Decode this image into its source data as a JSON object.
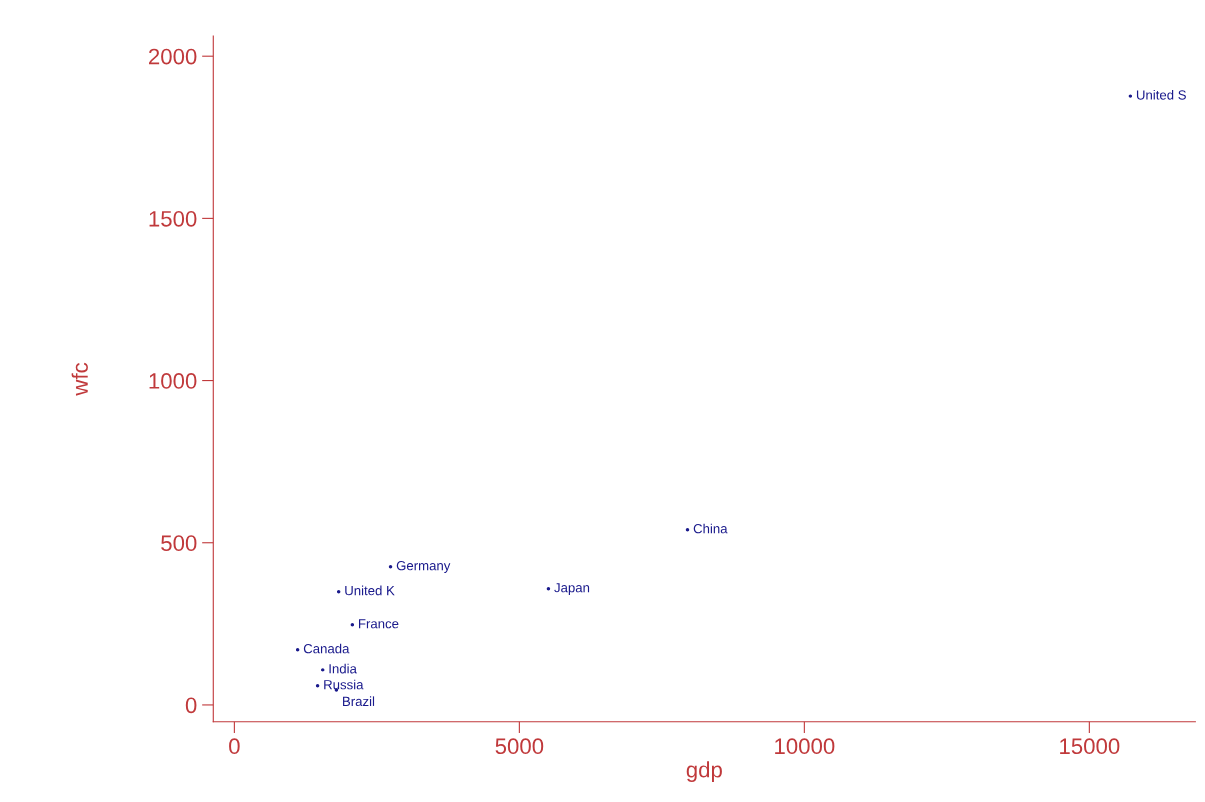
{
  "chart_data": {
    "type": "scatter",
    "xlabel": "gdp",
    "ylabel": "wfc",
    "x": [
      15720,
      7950,
      5510,
      2740,
      1830,
      2070,
      1110,
      1460,
      1790,
      1550
    ],
    "values": [
      1877,
      540,
      358,
      426,
      349,
      247,
      170,
      59,
      46,
      108
    ],
    "value_labels": [
      "United S",
      "China",
      "Japan",
      "Germany",
      "United K",
      "France",
      "Canada",
      "Russia",
      "Brazil",
      "India"
    ],
    "color": "#1a1a8c",
    "marker": "circle",
    "grid": false,
    "xlim": [
      -370,
      16860
    ],
    "ylim": [
      -52,
      2062
    ],
    "xticks": [
      0,
      5000,
      10000,
      15000
    ],
    "yticks": [
      0,
      500,
      1000,
      1500,
      2000
    ]
  }
}
